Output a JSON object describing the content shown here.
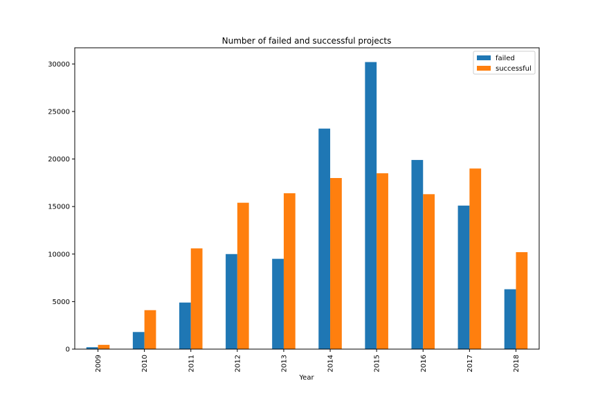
{
  "chart_data": {
    "type": "bar",
    "title": "Number of failed and successful projects",
    "xlabel": "Year",
    "ylabel": "",
    "categories": [
      "2009",
      "2010",
      "2011",
      "2012",
      "2013",
      "2014",
      "2015",
      "2016",
      "2017",
      "2018"
    ],
    "series": [
      {
        "name": "failed",
        "color": "#1f77b4",
        "values": [
          200,
          1800,
          4900,
          10000,
          9500,
          23200,
          30200,
          19900,
          15100,
          6300
        ]
      },
      {
        "name": "successful",
        "color": "#ff7f0e",
        "values": [
          450,
          4100,
          10600,
          15400,
          16400,
          18000,
          18500,
          16300,
          19000,
          10200
        ]
      }
    ],
    "ylim": [
      0,
      31700
    ],
    "yticks": [
      0,
      5000,
      10000,
      15000,
      20000,
      25000,
      30000
    ],
    "grid": false,
    "legend_position": "top-right"
  }
}
